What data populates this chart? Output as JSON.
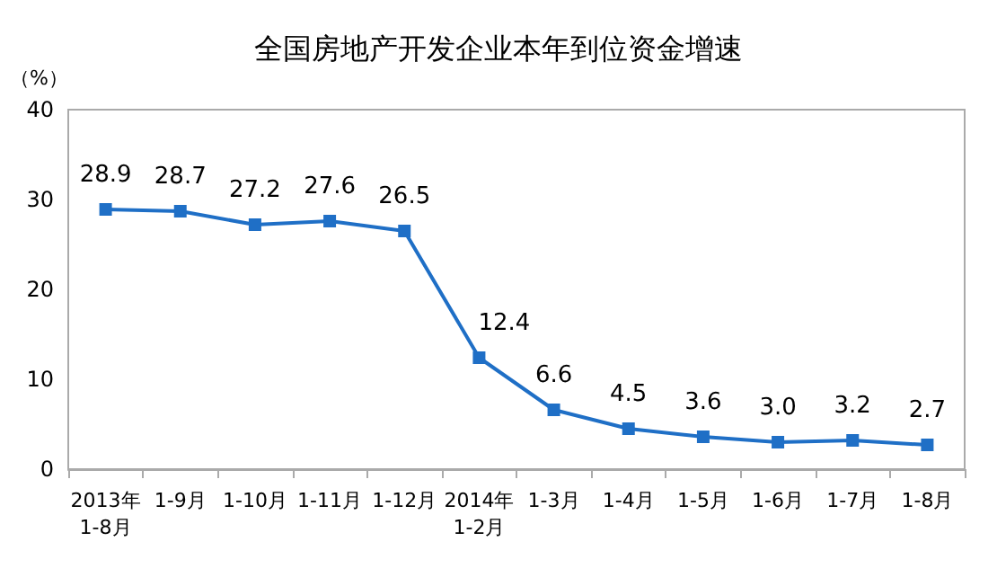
{
  "chart_data": {
    "type": "line",
    "title": "全国房地产开发企业本年到位资金增速",
    "ylabel": "（%）",
    "categories": [
      "2013年\n1-8月",
      "1-9月",
      "1-10月",
      "1-11月",
      "1-12月",
      "2014年\n1-2月",
      "1-3月",
      "1-4月",
      "1-5月",
      "1-6月",
      "1-7月",
      "1-8月"
    ],
    "series": [
      {
        "color": "#1f6fc6",
        "values": [
          28.9,
          28.7,
          27.2,
          27.6,
          26.5,
          12.4,
          6.6,
          4.5,
          3.6,
          3.0,
          3.2,
          2.7
        ],
        "value_labels": [
          "28.9",
          "28.7",
          "27.2",
          "27.6",
          "26.5",
          "12.4",
          "6.6",
          "4.5",
          "3.6",
          "3.0",
          "3.2",
          "2.7"
        ]
      }
    ],
    "ylim": [
      0,
      40
    ],
    "yticks": [
      0,
      10,
      20,
      30,
      40
    ],
    "grid": false,
    "marker": "square",
    "line_style": "solid"
  }
}
